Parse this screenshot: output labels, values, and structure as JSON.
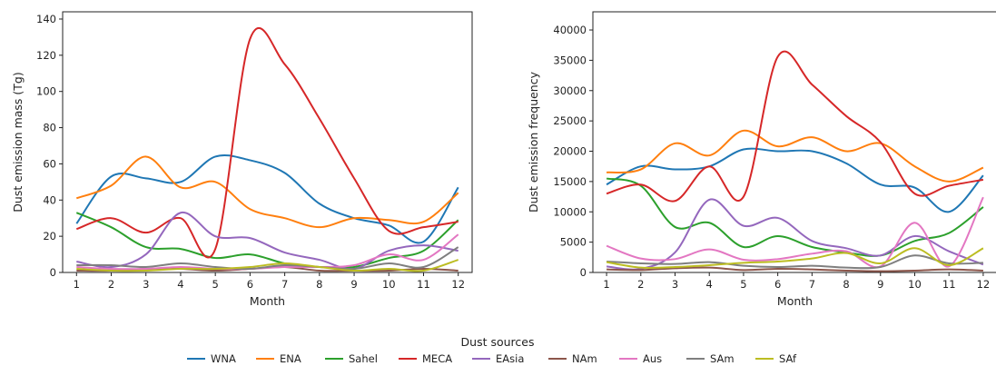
{
  "legend": {
    "title": "Dust sources",
    "colors": {
      "WNA": "#1f77b4",
      "ENA": "#ff7f0e",
      "Sahel": "#2ca02c",
      "MECA": "#d62728",
      "EAsia": "#9467bd",
      "NAm": "#8c564b",
      "Aus": "#e377c2",
      "SAm": "#7f7f7f",
      "SAf": "#bcbd22"
    }
  },
  "chart_data": [
    {
      "type": "line",
      "xlabel": "Month",
      "ylabel": "Dust emission mass (Tg)",
      "x": [
        1,
        2,
        3,
        4,
        5,
        6,
        7,
        8,
        9,
        10,
        11,
        12
      ],
      "xlim": [
        0.6,
        12.4
      ],
      "ylim": [
        0,
        144
      ],
      "yticks": [
        0,
        20,
        40,
        60,
        80,
        100,
        120,
        140
      ],
      "series": [
        {
          "name": "WNA",
          "values": [
            27,
            53,
            52,
            50,
            64,
            62,
            55,
            38,
            30,
            26,
            17,
            47
          ]
        },
        {
          "name": "ENA",
          "values": [
            41,
            48,
            64,
            47,
            50,
            35,
            30,
            25,
            30,
            29,
            28,
            44
          ]
        },
        {
          "name": "Sahel",
          "values": [
            33,
            25,
            14,
            13,
            8,
            10,
            5,
            3,
            3,
            8,
            12,
            29
          ]
        },
        {
          "name": "MECA",
          "values": [
            24,
            30,
            22,
            30,
            13,
            129,
            115,
            85,
            52,
            23,
            25,
            28
          ]
        },
        {
          "name": "EAsia",
          "values": [
            6,
            3,
            10,
            33,
            20,
            19,
            11,
            7,
            2,
            12,
            15,
            12
          ]
        },
        {
          "name": "NAm",
          "values": [
            1,
            1,
            2,
            2,
            1,
            2,
            3,
            1,
            1,
            1,
            2,
            1
          ]
        },
        {
          "name": "Aus",
          "values": [
            3,
            2,
            2,
            3,
            2,
            2,
            3,
            3,
            4,
            10,
            7,
            21
          ]
        },
        {
          "name": "SAm",
          "values": [
            4,
            4,
            3,
            5,
            3,
            2,
            4,
            3,
            2,
            5,
            3,
            14
          ]
        },
        {
          "name": "SAf",
          "values": [
            2,
            1,
            1,
            2,
            2,
            3,
            5,
            3,
            1,
            2,
            1,
            7
          ]
        }
      ]
    },
    {
      "type": "line",
      "xlabel": "Month",
      "ylabel": "Dust emission frequency",
      "x": [
        1,
        2,
        3,
        4,
        5,
        6,
        7,
        8,
        9,
        10,
        11,
        12
      ],
      "xlim": [
        0.6,
        12.4
      ],
      "ylim": [
        0,
        43000
      ],
      "yticks": [
        0,
        5000,
        10000,
        15000,
        20000,
        25000,
        30000,
        35000,
        40000
      ],
      "series": [
        {
          "name": "WNA",
          "values": [
            14500,
            17500,
            17000,
            17500,
            20300,
            20000,
            20000,
            18000,
            14500,
            14000,
            10000,
            16000
          ]
        },
        {
          "name": "ENA",
          "values": [
            16500,
            17000,
            21300,
            19300,
            23400,
            20800,
            22300,
            20000,
            21300,
            17500,
            15000,
            17300
          ]
        },
        {
          "name": "Sahel",
          "values": [
            15500,
            14300,
            7500,
            8200,
            4200,
            6000,
            4200,
            3300,
            2800,
            5200,
            6500,
            10800
          ]
        },
        {
          "name": "MECA",
          "values": [
            13000,
            14500,
            11800,
            17500,
            12500,
            35600,
            31000,
            25800,
            21500,
            13000,
            14300,
            15300
          ]
        },
        {
          "name": "EAsia",
          "values": [
            1000,
            600,
            3300,
            12000,
            7700,
            9000,
            5200,
            4000,
            2800,
            6000,
            3500,
            1300
          ]
        },
        {
          "name": "NAm",
          "values": [
            500,
            400,
            700,
            800,
            400,
            600,
            500,
            300,
            200,
            300,
            500,
            300
          ]
        },
        {
          "name": "Aus",
          "values": [
            4400,
            2300,
            2200,
            3800,
            2100,
            2200,
            3100,
            3500,
            1000,
            8200,
            1000,
            12400
          ]
        },
        {
          "name": "SAm",
          "values": [
            1800,
            1500,
            1400,
            1700,
            1100,
            900,
            1100,
            800,
            900,
            2800,
            1500,
            1600
          ]
        },
        {
          "name": "SAf",
          "values": [
            1700,
            800,
            900,
            1200,
            1600,
            1800,
            2300,
            3200,
            1500,
            4000,
            1200,
            4000
          ]
        }
      ]
    }
  ]
}
